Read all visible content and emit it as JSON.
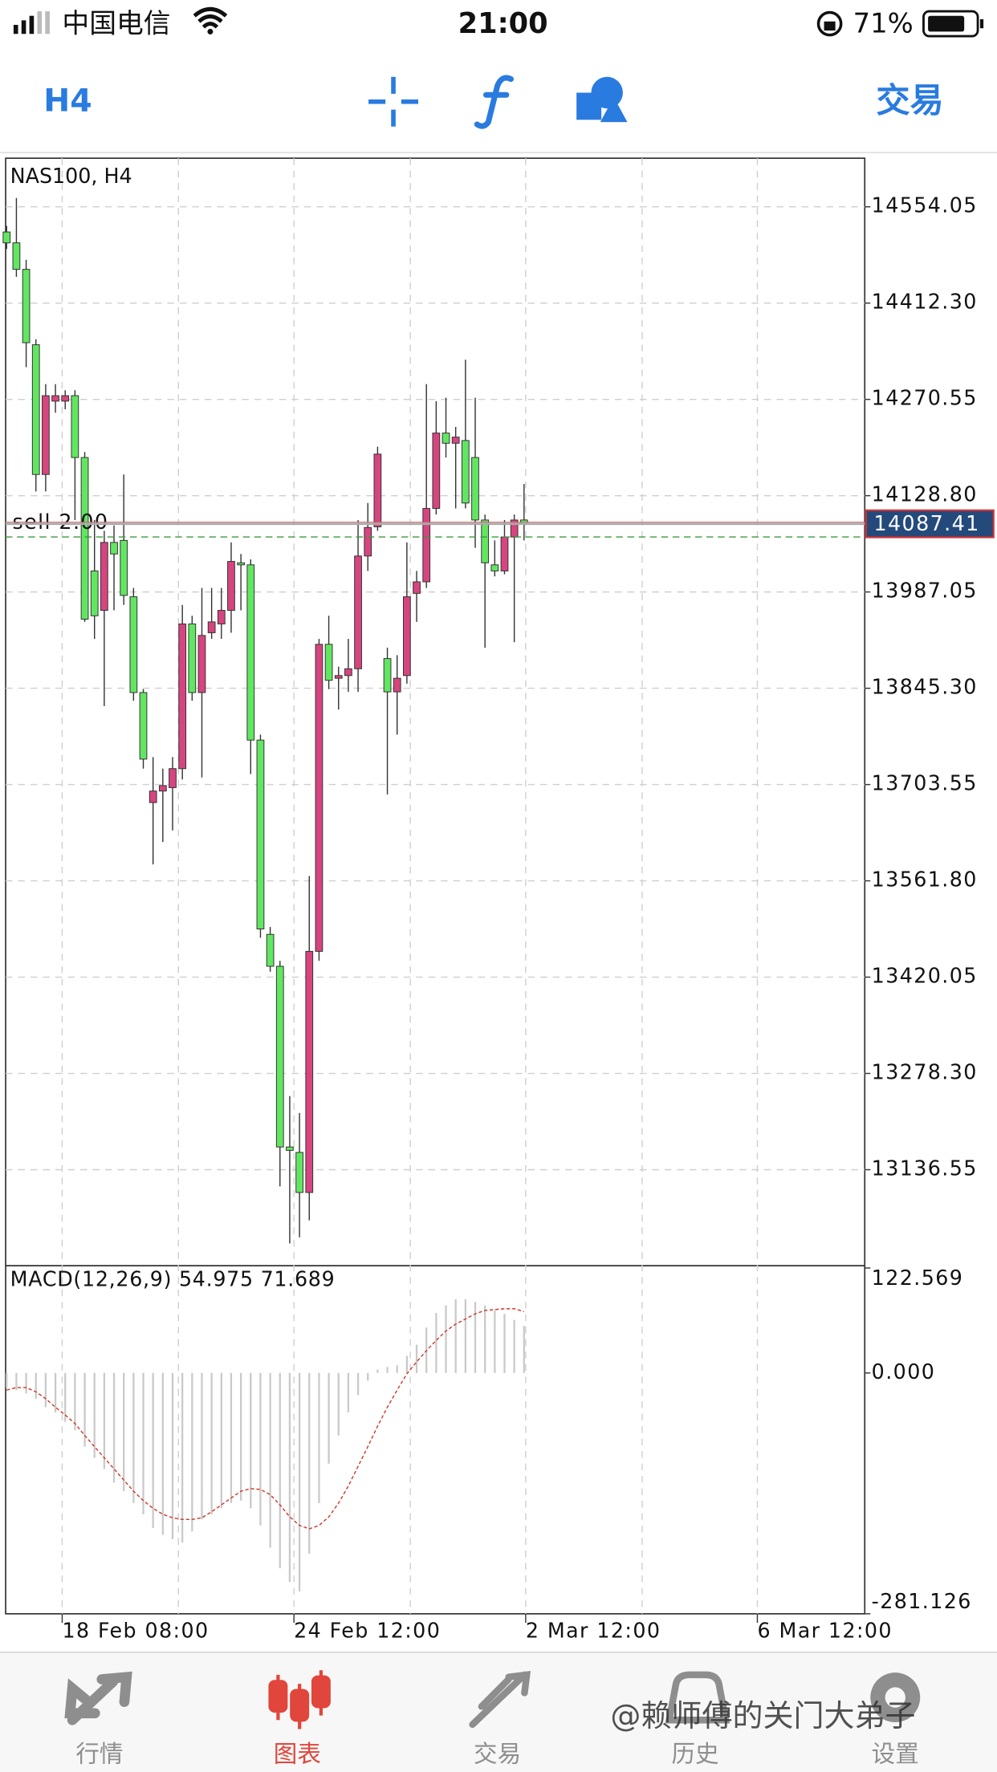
{
  "status_bar": {
    "carrier": "中国电信",
    "time": "21:00",
    "battery": "71%"
  },
  "toolbar": {
    "timeframe": "H4",
    "trade": "交易"
  },
  "chart_data": [
    {
      "type": "candlestick",
      "title": "NAS100, H4",
      "open": [
        14517,
        14501,
        14462,
        14351,
        14160,
        14268,
        14268,
        14276,
        14185,
        14018,
        13960,
        14060,
        14063,
        13980,
        13839,
        13677,
        13694,
        13699,
        13727,
        13940,
        13839,
        13927,
        13940,
        13960,
        14030,
        14027,
        13769,
        13483,
        13436,
        13170,
        13162,
        13103,
        13458,
        13910,
        13860,
        13864,
        13874,
        14040,
        14083,
        13889,
        13840,
        13864,
        13985,
        14002,
        14110,
        14221,
        14206,
        14210,
        14185,
        14093,
        14027,
        14018,
        14068,
        14093
      ],
      "high": [
        14526,
        14567,
        14476,
        14359,
        14293,
        14293,
        14284,
        14284,
        14193,
        14093,
        14077,
        14085,
        14160,
        13993,
        13844,
        13744,
        13727,
        13744,
        13968,
        13952,
        13993,
        13993,
        13993,
        14060,
        14043,
        14035,
        13777,
        13494,
        13444,
        13245,
        13220,
        13569,
        13918,
        13952,
        13877,
        13918,
        14093,
        14118,
        14201,
        13905,
        13894,
        14060,
        14018,
        14293,
        14268,
        14273,
        14230,
        14329,
        14273,
        14101,
        14063,
        14093,
        14101,
        14146
      ],
      "low": [
        14492,
        14451,
        14318,
        14135,
        14135,
        14251,
        14256,
        14093,
        13943,
        13918,
        13819,
        13960,
        13968,
        13827,
        13727,
        13586,
        13619,
        13636,
        13711,
        13827,
        13714,
        13918,
        13918,
        13927,
        13960,
        13719,
        13478,
        13428,
        13112,
        13028,
        13037,
        13062,
        13444,
        13844,
        13814,
        13840,
        13840,
        14018,
        14077,
        13689,
        13777,
        13852,
        13943,
        13993,
        14101,
        14185,
        14110,
        14110,
        14052,
        13905,
        14010,
        14013,
        13913,
        14063
      ],
      "close": [
        14501,
        14462,
        14354,
        14160,
        14276,
        14276,
        14276,
        14185,
        13947,
        13952,
        14060,
        14043,
        13982,
        13839,
        13741,
        13694,
        13702,
        13727,
        13940,
        13839,
        13923,
        13943,
        13960,
        14032,
        14027,
        13769,
        13491,
        13436,
        13170,
        13165,
        13103,
        13458,
        13910,
        13857,
        13864,
        13874,
        14040,
        14082,
        14190,
        13840,
        13860,
        13980,
        14002,
        14110,
        14221,
        14206,
        14215,
        14118,
        14093,
        14030,
        14018,
        14068,
        14093,
        14087.41
      ],
      "up_color": "#d6457f",
      "down_color": "#62e662",
      "xlim": [
        -0.1,
        87.9
      ],
      "ylim": [
        12995.2,
        14625.6
      ],
      "yticks": [
        14554.05,
        {
          "value": 14412.3,
          "label": "14412.30"
        },
        14270.55,
        {
          "value": 14128.8,
          "label": "14128.80"
        },
        13987.05,
        {
          "value": 13845.3,
          "label": "13845.30"
        },
        13703.55,
        {
          "value": 13561.8,
          "label": "13561.80"
        },
        13420.05,
        {
          "value": 13278.3,
          "label": "13278.30"
        },
        13136.55
      ],
      "xticks": [
        {
          "value": 5.69,
          "label": "18 Feb 08:00"
        },
        {
          "value": 29.43,
          "label": "24 Feb 12:00"
        },
        {
          "value": 53.17,
          "label": "2 Mar 12:00"
        },
        {
          "value": 76.9,
          "label": "6 Mar 12:00"
        }
      ],
      "xgrid": [
        17.6,
        41.35,
        65.1
      ],
      "grid": true,
      "current_price": 14087.41,
      "order": {
        "label": "sell 2.00",
        "price": 14068,
        "color": "#3a9a3a"
      }
    },
    {
      "type": "macd",
      "title": "MACD(12,26,9)",
      "main_value": 54.975,
      "signal_value": 71.689,
      "histogram": [
        -17,
        -20,
        -24,
        -30,
        -40,
        -46,
        -57,
        -67,
        -86,
        -99,
        -112,
        -128,
        -138,
        -152,
        -165,
        -181,
        -189,
        -194,
        -198,
        -185,
        -171,
        -165,
        -158,
        -152,
        -149,
        -158,
        -178,
        -204,
        -228,
        -244,
        -255,
        -211,
        -152,
        -106,
        -73,
        -46,
        -26,
        -9,
        4,
        7,
        9,
        20,
        33,
        53,
        70,
        79,
        86,
        86,
        83,
        79,
        73,
        69,
        62,
        54.975
      ],
      "signal": [
        -20,
        -17,
        -17,
        -22,
        -30,
        -40,
        -49,
        -59,
        -73,
        -86,
        -99,
        -112,
        -125,
        -138,
        -149,
        -158,
        -165,
        -169,
        -171,
        -171,
        -169,
        -162,
        -154,
        -146,
        -138,
        -135,
        -136,
        -142,
        -154,
        -168,
        -178,
        -182,
        -178,
        -168,
        -152,
        -132,
        -109,
        -86,
        -62,
        -40,
        -20,
        -1,
        13,
        26,
        38,
        49,
        57,
        63,
        69,
        73,
        74,
        75,
        75,
        71.689
      ],
      "histogram_color": "#c9c9c9",
      "signal_color": "#cc3a2a",
      "xlim": [
        -0.1,
        87.9
      ],
      "ylim": [
        -281.126,
        122.569
      ],
      "yticks": [
        122.569,
        {
          "value": 0,
          "label": "0.000"
        },
        -281.126
      ]
    }
  ],
  "tab_bar": {
    "tabs": [
      {
        "label": "行情"
      },
      {
        "label": "图表"
      },
      {
        "label": "交易"
      },
      {
        "label": "历史"
      },
      {
        "label": "设置"
      }
    ],
    "active": 1
  },
  "watermark": "@赖师傅的关门大弟子"
}
